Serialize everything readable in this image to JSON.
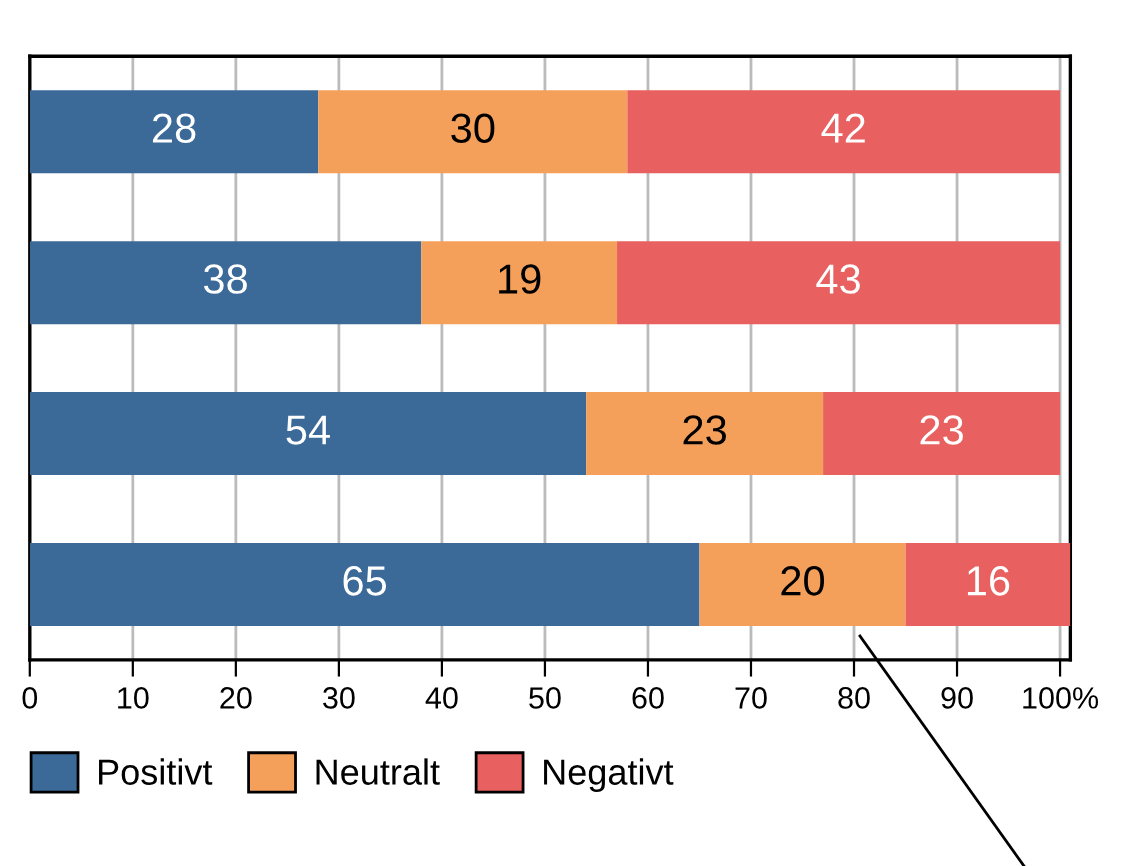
{
  "chart_data": {
    "type": "bar",
    "orientation": "horizontal",
    "stacked": true,
    "categories": [
      null,
      null,
      null,
      null
    ],
    "series": [
      {
        "name": "Positivt",
        "color": "#3b6a99",
        "values": [
          28,
          38,
          54,
          65
        ]
      },
      {
        "name": "Neutralt",
        "color": "#f5a05a",
        "values": [
          30,
          19,
          23,
          20
        ]
      },
      {
        "name": "Negativt",
        "color": "#e8605f",
        "values": [
          42,
          43,
          23,
          16
        ]
      }
    ],
    "xlim": [
      0,
      101
    ],
    "xticks": [
      0,
      10,
      20,
      30,
      40,
      50,
      60,
      70,
      80,
      90,
      {
        "value": 100,
        "label": "100%"
      }
    ],
    "grid": "x",
    "legend": "bottom",
    "data_labels": true
  }
}
